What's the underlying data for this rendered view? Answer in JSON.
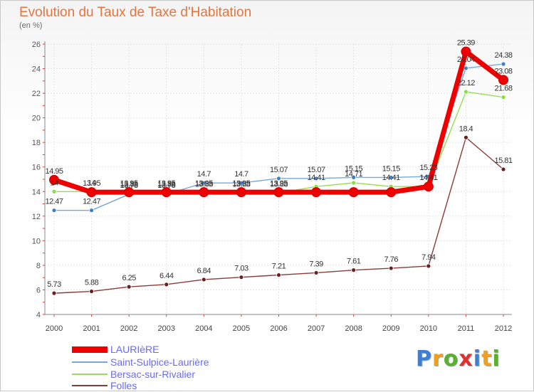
{
  "title": "Evolution du Taux de Taxe d'Habitation",
  "unit": "(en %)",
  "logo": {
    "letters": [
      "P",
      "r",
      "o",
      "x",
      "i",
      "t",
      "i"
    ],
    "colors": [
      "#3d7fd8",
      "#f0a020",
      "#5bb030",
      "#e03030",
      "#3d7fd8",
      "#f0a020",
      "#5bb030"
    ]
  },
  "chart_data": {
    "type": "line",
    "title": "Evolution du Taux de Taxe d'Habitation",
    "ylabel": "(en %)",
    "x": [
      "2000",
      "2001",
      "2002",
      "2003",
      "2004",
      "2005",
      "2006",
      "2007",
      "2008",
      "2009",
      "2010",
      "2011",
      "2012"
    ],
    "ylim": [
      4,
      26
    ],
    "yticks": [
      4,
      6,
      8,
      10,
      12,
      14,
      16,
      18,
      20,
      22,
      24,
      26
    ],
    "grid": true,
    "legend": "bottom-left",
    "series": [
      {
        "name": "LAURIèRE",
        "color": "#ee0000",
        "values": [
          14.95,
          13.95,
          13.95,
          13.95,
          13.95,
          13.95,
          13.95,
          13.95,
          13.95,
          13.95,
          14.41,
          25.39,
          23.08
        ],
        "labels": [
          "14.95",
          "13.95",
          "13.95",
          "13.95",
          "13.95",
          "13.95",
          "13.95",
          "",
          "",
          "",
          "14.41",
          "25.39",
          "23.08"
        ]
      },
      {
        "name": "Saint-Sulpice-Laurière",
        "color": "#77a8d8",
        "values": [
          12.47,
          12.47,
          13.78,
          13.78,
          14.7,
          14.7,
          15.07,
          15.07,
          15.15,
          15.15,
          15.23,
          24.04,
          24.38
        ],
        "labels": [
          "12.47",
          "12.47",
          "13.78",
          "13.78",
          "14.7",
          "14.7",
          "15.07",
          "15.07",
          "15.15",
          "15.15",
          "15.23",
          "24.04",
          "24.38"
        ]
      },
      {
        "name": "Bersac-sur-Rivalier",
        "color": "#99dd55",
        "values": [
          14,
          14,
          13.88,
          13.88,
          13.88,
          13.88,
          13.88,
          14.41,
          14.71,
          14.41,
          14.41,
          22.12,
          21.68
        ],
        "labels": [
          "14",
          "14",
          "13.88",
          "13.88",
          "13.88",
          "13.88",
          "13.88",
          "14.41",
          "14.71",
          "14.41",
          "14.41",
          "22.12",
          "21.68"
        ]
      },
      {
        "name": "Folles",
        "color": "#8b3a3a",
        "values": [
          5.73,
          5.88,
          6.25,
          6.44,
          6.84,
          7.03,
          7.21,
          7.39,
          7.61,
          7.76,
          7.94,
          18.4,
          15.81
        ],
        "labels": [
          "5.73",
          "5.88",
          "6.25",
          "6.44",
          "6.84",
          "7.03",
          "7.21",
          "7.39",
          "7.61",
          "7.76",
          "7.94",
          "18.4",
          "15.81"
        ]
      }
    ]
  }
}
